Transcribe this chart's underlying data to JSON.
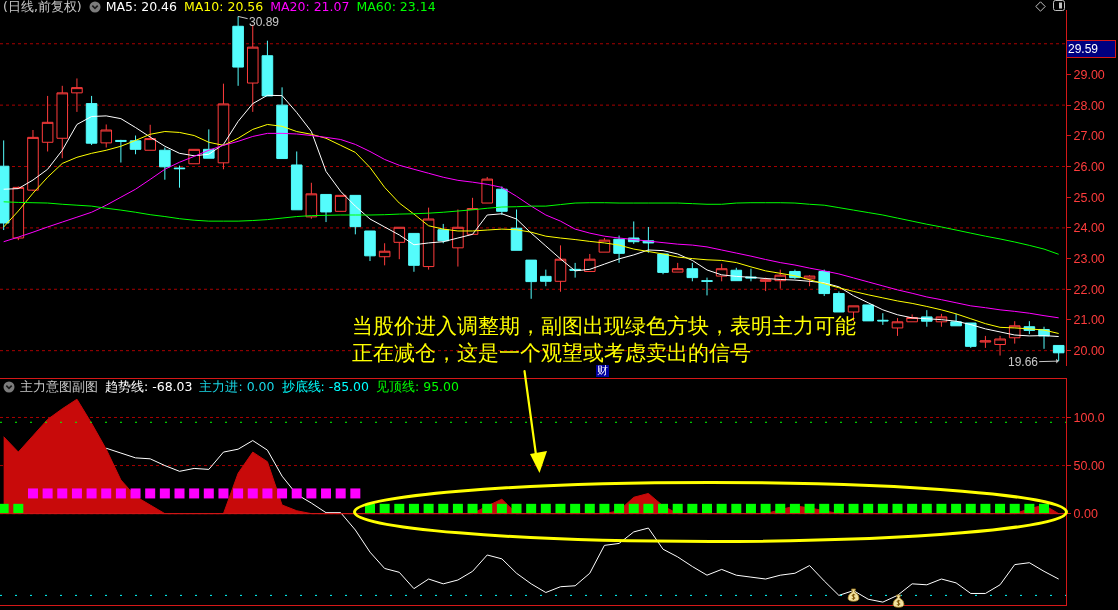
{
  "chart_data": [
    {
      "type": "candlestick",
      "title": "(日线,前复权)",
      "categories": [
        null,
        null,
        null,
        null,
        null,
        null,
        null,
        null,
        null,
        null,
        null,
        null,
        null,
        null,
        null,
        null,
        null,
        null,
        null,
        null,
        null,
        null,
        null,
        null,
        null,
        null,
        null,
        null,
        null,
        null,
        null,
        null,
        null,
        null,
        null,
        null,
        null,
        null,
        null,
        null,
        null,
        null,
        null,
        null,
        null,
        null,
        null,
        null,
        null,
        null,
        null,
        null,
        null,
        null,
        null,
        null,
        null,
        null,
        null,
        null,
        null,
        null,
        null,
        null,
        null,
        null,
        null,
        null,
        null,
        null,
        null,
        null,
        null
      ],
      "ohlc": [
        [
          26.01,
          26.85,
          23.93,
          24.16
        ],
        [
          23.67,
          25.35,
          23.6,
          25.32
        ],
        [
          25.23,
          27.19,
          25.2,
          26.95
        ],
        [
          26.79,
          28.3,
          26.49,
          27.44
        ],
        [
          26.92,
          28.63,
          26.27,
          28.4
        ],
        [
          28.4,
          28.87,
          27.78,
          28.57
        ],
        [
          28.05,
          28.3,
          26.7,
          26.76
        ],
        [
          26.77,
          27.37,
          26.62,
          27.19
        ],
        [
          26.85,
          26.87,
          26.13,
          26.82
        ],
        [
          26.84,
          27.01,
          26.4,
          26.56
        ],
        [
          26.53,
          27.36,
          26.53,
          26.91
        ],
        [
          26.53,
          26.62,
          25.57,
          25.99
        ],
        [
          25.95,
          26.03,
          25.31,
          25.93
        ],
        [
          26.09,
          26.56,
          26.09,
          26.56
        ],
        [
          26.56,
          27.21,
          26.27,
          26.27
        ],
        [
          26.12,
          28.7,
          25.91,
          28.04
        ],
        [
          30.57,
          30.89,
          28.63,
          29.24
        ],
        [
          28.72,
          30.62,
          27.78,
          29.89
        ],
        [
          29.61,
          30.1,
          28.3,
          28.3
        ],
        [
          28.0,
          28.58,
          26.26,
          26.26
        ],
        [
          26.05,
          26.49,
          24.59,
          24.59
        ],
        [
          24.36,
          25.47,
          24.3,
          25.11
        ],
        [
          25.09,
          25.09,
          24.19,
          24.52
        ],
        [
          24.54,
          25.06,
          24.54,
          25.06
        ],
        [
          25.06,
          25.06,
          23.79,
          24.04
        ],
        [
          23.9,
          23.9,
          22.92,
          23.09
        ],
        [
          23.06,
          23.5,
          22.78,
          23.24
        ],
        [
          23.53,
          24.02,
          22.98,
          24.02
        ],
        [
          23.82,
          23.82,
          22.57,
          22.78
        ],
        [
          22.74,
          24.66,
          22.64,
          24.29
        ],
        [
          23.94,
          24.13,
          23.5,
          23.58
        ],
        [
          23.35,
          24.6,
          22.74,
          24.02
        ],
        [
          23.79,
          24.98,
          23.79,
          24.63
        ],
        [
          24.81,
          25.66,
          24.81,
          25.59
        ],
        [
          25.26,
          25.35,
          24.42,
          24.54
        ],
        [
          23.99,
          24.6,
          23.27,
          23.27
        ],
        [
          22.95,
          22.95,
          21.69,
          22.25
        ],
        [
          22.42,
          22.64,
          22.1,
          22.26
        ],
        [
          22.26,
          23.43,
          21.92,
          22.98
        ],
        [
          22.65,
          22.86,
          22.38,
          22.62
        ],
        [
          22.58,
          23.15,
          22.58,
          22.98
        ],
        [
          23.21,
          23.67,
          23.21,
          23.6
        ],
        [
          23.63,
          23.75,
          22.86,
          23.17
        ],
        [
          23.67,
          24.21,
          23.48,
          23.55
        ],
        [
          23.58,
          24.03,
          23.19,
          23.51
        ],
        [
          23.15,
          23.15,
          22.49,
          22.55
        ],
        [
          22.56,
          22.86,
          22.56,
          22.67
        ],
        [
          22.67,
          22.86,
          22.26,
          22.38
        ],
        [
          22.28,
          22.38,
          21.8,
          22.26
        ],
        [
          22.43,
          22.83,
          22.26,
          22.67
        ],
        [
          22.62,
          22.7,
          22.28,
          22.28
        ],
        [
          22.4,
          22.67,
          22.26,
          22.37
        ],
        [
          22.26,
          22.38,
          21.94,
          22.31
        ],
        [
          22.28,
          22.64,
          22.02,
          22.46
        ],
        [
          22.58,
          22.64,
          22.34,
          22.38
        ],
        [
          22.34,
          22.46,
          22.1,
          22.43
        ],
        [
          22.58,
          22.64,
          21.78,
          21.86
        ],
        [
          21.86,
          21.93,
          21.26,
          21.26
        ],
        [
          21.26,
          21.46,
          20.96,
          21.46
        ],
        [
          21.49,
          21.49,
          20.97,
          20.97
        ],
        [
          20.99,
          21.22,
          20.84,
          20.97
        ],
        [
          20.74,
          21.06,
          20.48,
          20.94
        ],
        [
          20.94,
          21.18,
          20.94,
          21.08
        ],
        [
          21.1,
          21.32,
          20.78,
          20.96
        ],
        [
          20.94,
          21.2,
          20.78,
          21.1
        ],
        [
          20.94,
          21.2,
          20.81,
          20.81
        ],
        [
          20.9,
          20.9,
          20.09,
          20.14
        ],
        [
          20.28,
          20.48,
          20.09,
          20.32
        ],
        [
          20.2,
          20.48,
          19.84,
          20.38
        ],
        [
          20.42,
          20.96,
          20.23,
          20.81
        ],
        [
          20.78,
          20.96,
          20.54,
          20.66
        ],
        [
          20.69,
          20.78,
          20.06,
          20.48
        ],
        [
          20.17,
          20.17,
          19.66,
          19.93
        ]
      ],
      "colors": [
        "#54fcfc",
        "#ff3c3c",
        "#ff3c3c",
        "#ff3c3c",
        "#ff3c3c",
        "#ff3c3c",
        "#54fcfc",
        "#ff3c3c",
        "#54fcfc",
        "#54fcfc",
        "#ff3c3c",
        "#54fcfc",
        "#54fcfc",
        "#ff3c3c",
        "#54fcfc",
        "#ff3c3c",
        "#54fcfc",
        "#ff3c3c",
        "#54fcfc",
        "#54fcfc",
        "#54fcfc",
        "#ff3c3c",
        "#54fcfc",
        "#ff3c3c",
        "#54fcfc",
        "#54fcfc",
        "#ff3c3c",
        "#ff3c3c",
        "#54fcfc",
        "#ff3c3c",
        "#54fcfc",
        "#ff3c3c",
        "#ff3c3c",
        "#ff3c3c",
        "#54fcfc",
        "#54fcfc",
        "#54fcfc",
        "#54fcfc",
        "#ff3c3c",
        "#54fcfc",
        "#ff3c3c",
        "#ff3c3c",
        "#54fcfc",
        "#54fcfc",
        "#54fcfc",
        "#54fcfc",
        "#ff3c3c",
        "#54fcfc",
        "#54fcfc",
        "#ff3c3c",
        "#54fcfc",
        "#54fcfc",
        "#ff3c3c",
        "#ff3c3c",
        "#54fcfc",
        "#ff3c3c",
        "#54fcfc",
        "#54fcfc",
        "#ff3c3c",
        "#54fcfc",
        "#54fcfc",
        "#ff3c3c",
        "#ff3c3c",
        "#54fcfc",
        "#ff3c3c",
        "#54fcfc",
        "#54fcfc",
        "#ff3c3c",
        "#ff3c3c",
        "#ff3c3c",
        "#54fcfc",
        "#54fcfc",
        "#54fcfc"
      ],
      "series": [
        {
          "type": "line",
          "name": "MA5: 20.46",
          "color": "#ffffff",
          "values": [
            25.26,
            25.28,
            25.56,
            25.91,
            26.53,
            27.37,
            27.63,
            27.65,
            27.56,
            27.27,
            26.96,
            26.66,
            26.43,
            26.35,
            26.4,
            26.72,
            27.47,
            28.05,
            28.32,
            28.31,
            27.76,
            27.14,
            25.84,
            25.19,
            24.71,
            24.29,
            24.03,
            23.77,
            23.45,
            23.51,
            23.55,
            23.67,
            23.79,
            24.42,
            24.46,
            24.29,
            23.83,
            23.41,
            22.99,
            22.6,
            22.65,
            22.82,
            22.99,
            23.12,
            23.28,
            23.26,
            23.15,
            22.94,
            22.63,
            22.47,
            22.42,
            22.39,
            22.35,
            22.32,
            22.3,
            22.26,
            22.21,
            22.08,
            21.79,
            21.56,
            21.33,
            21.17,
            21.07,
            21.04,
            21.01,
            20.96,
            20.85,
            20.71,
            20.61,
            20.51,
            20.48,
            20.49,
            20.46
          ]
        },
        {
          "type": "line",
          "name": "MA10: 20.56",
          "color": "#ffff00",
          "values": [
            24.03,
            24.55,
            25.13,
            25.65,
            26.1,
            26.3,
            26.43,
            26.53,
            26.66,
            26.85,
            27.05,
            27.14,
            27.11,
            27.01,
            26.79,
            26.69,
            26.92,
            27.21,
            27.37,
            27.31,
            27.14,
            27.05,
            26.92,
            26.69,
            26.46,
            25.97,
            25.32,
            24.81,
            24.45,
            24.07,
            23.96,
            23.9,
            23.9,
            23.93,
            23.96,
            23.94,
            23.86,
            23.73,
            23.67,
            23.62,
            23.56,
            23.51,
            23.44,
            23.31,
            23.23,
            23.15,
            23.05,
            23.0,
            22.96,
            22.94,
            22.87,
            22.73,
            22.6,
            22.52,
            22.44,
            22.31,
            22.18,
            22.05,
            21.93,
            21.82,
            21.72,
            21.62,
            21.54,
            21.44,
            21.33,
            21.2,
            21.04,
            20.88,
            20.76,
            20.74,
            20.71,
            20.67,
            20.56
          ]
        },
        {
          "type": "line",
          "name": "MA20: 21.07",
          "color": "#ff00ff",
          "values": [
            23.55,
            23.7,
            23.86,
            24.03,
            24.19,
            24.35,
            24.51,
            24.74,
            25.0,
            25.26,
            25.58,
            25.91,
            26.14,
            26.33,
            26.53,
            26.69,
            26.82,
            26.98,
            27.08,
            27.08,
            27.06,
            27.01,
            26.95,
            26.88,
            26.72,
            26.49,
            26.23,
            26.04,
            25.91,
            25.78,
            25.65,
            25.55,
            25.49,
            25.42,
            25.32,
            25.03,
            24.71,
            24.42,
            24.22,
            23.96,
            23.83,
            23.73,
            23.67,
            23.62,
            23.57,
            23.52,
            23.47,
            23.44,
            23.38,
            23.28,
            23.18,
            23.08,
            22.97,
            22.87,
            22.79,
            22.69,
            22.6,
            22.5,
            22.37,
            22.24,
            22.11,
            21.98,
            21.87,
            21.75,
            21.66,
            21.56,
            21.46,
            21.4,
            21.33,
            21.28,
            21.22,
            21.14,
            21.07
          ]
        },
        {
          "type": "line",
          "name": "MA60: 23.14",
          "color": "#00ff00",
          "values": [
            24.85,
            24.83,
            24.82,
            24.81,
            24.77,
            24.74,
            24.71,
            24.64,
            24.58,
            24.51,
            24.43,
            24.37,
            24.3,
            24.25,
            24.22,
            24.22,
            24.22,
            24.24,
            24.27,
            24.32,
            24.37,
            24.4,
            24.41,
            24.42,
            24.42,
            24.42,
            24.43,
            24.45,
            24.46,
            24.48,
            24.51,
            24.55,
            24.59,
            24.64,
            24.68,
            24.69,
            24.71,
            24.71,
            24.76,
            24.81,
            24.82,
            24.82,
            24.81,
            24.81,
            24.81,
            24.81,
            24.81,
            24.79,
            24.77,
            24.77,
            24.81,
            24.82,
            24.82,
            24.82,
            24.81,
            24.77,
            24.74,
            24.66,
            24.58,
            24.5,
            24.42,
            24.32,
            24.22,
            24.12,
            24.03,
            23.93,
            23.83,
            23.73,
            23.64,
            23.54,
            23.43,
            23.31,
            23.14
          ]
        }
      ],
      "ylim": [
        19.5,
        31.1
      ],
      "yticks": [
        {
          "value": 20,
          "label": "20.00"
        },
        {
          "value": 21,
          "label": "21.00"
        },
        {
          "value": 22,
          "label": "22.00"
        },
        {
          "value": 23,
          "label": "23.00"
        },
        {
          "value": 24,
          "label": "24.00"
        },
        {
          "value": 25,
          "label": "25.00"
        },
        {
          "value": 26,
          "label": "26.00"
        },
        {
          "value": 27,
          "label": "27.00"
        },
        {
          "value": 28,
          "label": "28.00"
        },
        {
          "value": 29,
          "label": "29.00"
        },
        {
          "value": 30,
          "label": null
        }
      ],
      "grid": "y",
      "legend": "top left",
      "tick_labels": "y",
      "annotations": [
        "当股价进入调整期，副图出现绿色方块，表明主力可能正在减仓，这是一个观望或考虑卖出的信号",
        "财",
        "30.89",
        "19.66",
        "29.59"
      ]
    },
    {
      "type": "line",
      "title": "主力意图副图",
      "categories": [
        null,
        null,
        null,
        null,
        null,
        null,
        null,
        null,
        null,
        null,
        null,
        null,
        null,
        null,
        null,
        null,
        null,
        null,
        null,
        null,
        null,
        null,
        null,
        null,
        null,
        null,
        null,
        null,
        null,
        null,
        null,
        null,
        null,
        null,
        null,
        null,
        null,
        null,
        null,
        null,
        null,
        null,
        null,
        null,
        null,
        null,
        null,
        null,
        null,
        null,
        null,
        null,
        null,
        null,
        null,
        null,
        null,
        null,
        null,
        null,
        null,
        null,
        null,
        null,
        null,
        null,
        null,
        null,
        null,
        null,
        null,
        null,
        null
      ],
      "series": [
        {
          "type": "area",
          "color": "#c80a0a",
          "values": [
            80,
            64,
            81,
            98,
            109,
            119,
            94,
            67,
            35,
            18,
            9,
            0,
            0,
            0,
            0,
            0,
            42,
            64,
            54,
            9,
            3,
            0,
            0,
            0,
            0,
            0,
            0,
            0,
            0,
            0,
            0,
            0,
            0,
            8,
            15,
            0,
            0,
            0,
            0,
            0,
            0,
            0,
            3,
            17,
            21,
            8,
            0,
            0,
            0,
            0,
            0,
            0,
            0,
            4,
            8,
            6,
            3,
            0,
            0,
            0,
            0,
            0,
            0,
            0,
            0,
            0,
            0,
            0,
            0,
            0,
            5,
            9,
            0
          ]
        },
        {
          "type": "line",
          "name": "趋势线: -68.03",
          "color": "#ffffff",
          "values": [
            null,
            null,
            null,
            null,
            null,
            null,
            null,
            68,
            63,
            58,
            57,
            50,
            44,
            47,
            46,
            64,
            67,
            76,
            66,
            39,
            20,
            11,
            1,
            1,
            -17,
            -40,
            -57,
            -61,
            -78,
            -68,
            -73,
            -69,
            -60,
            -43,
            -47,
            -62,
            -73,
            -82,
            -76,
            -75,
            -62,
            -33,
            -31,
            -19,
            -15,
            -37,
            -45,
            -55,
            -64,
            -58,
            -64,
            -66,
            -68,
            -64,
            -62,
            -54,
            -70,
            -85,
            -80,
            -89,
            -92,
            -85,
            -73,
            -74,
            -68,
            -72,
            -83,
            -83,
            -74,
            -53,
            -51,
            -60,
            -68.03
          ]
        },
        {
          "type": "scatter",
          "marker": "square",
          "color": "#ff00ff",
          "values": [
            null,
            null,
            21,
            21,
            21,
            21,
            21,
            21,
            21,
            21,
            21,
            21,
            21,
            21,
            21,
            21,
            21,
            21,
            21,
            21,
            21,
            21,
            21,
            21,
            21,
            null,
            null,
            null,
            null,
            null,
            null,
            null,
            null,
            null,
            null,
            null,
            null,
            null,
            null,
            null,
            null,
            null,
            null,
            null,
            null,
            null,
            null,
            null,
            null,
            null,
            null,
            null,
            null,
            null,
            null,
            null,
            null,
            null,
            null,
            null,
            null,
            null,
            null,
            null,
            null,
            null,
            null,
            null,
            null,
            null,
            null,
            null,
            null
          ]
        },
        {
          "type": "scatter",
          "marker": "square",
          "color": "#00ff00",
          "values": [
            5,
            5,
            null,
            null,
            null,
            null,
            null,
            null,
            null,
            null,
            null,
            null,
            null,
            null,
            null,
            null,
            null,
            null,
            null,
            null,
            null,
            null,
            null,
            null,
            null,
            5,
            5,
            5,
            5,
            5,
            5,
            5,
            5,
            5,
            5,
            5,
            5,
            5,
            5,
            5,
            5,
            5,
            5,
            5,
            5,
            5,
            5,
            5,
            5,
            5,
            5,
            5,
            5,
            5,
            5,
            5,
            5,
            5,
            5,
            5,
            5,
            5,
            5,
            5,
            5,
            5,
            5,
            5,
            5,
            5,
            5,
            5,
            null
          ]
        }
      ],
      "ylim": [
        -95,
        140
      ],
      "yticks": [
        {
          "value": 0,
          "label": "0.00"
        },
        {
          "value": 50,
          "label": "50.00"
        },
        {
          "value": 100,
          "label": "100.0"
        }
      ],
      "grid": "y",
      "legend": "top left",
      "tick_labels": "y",
      "ref_lines": [
        {
          "axis": "y",
          "value": 0,
          "color": "#d41818",
          "line_style": "solid"
        },
        {
          "axis": "y",
          "value": -85,
          "label": "抄底线: -85.00",
          "color": "#00ffff",
          "line_style": "dotted"
        },
        {
          "axis": "y",
          "value": 95,
          "label": "见顶线: 95.00",
          "color": "#00ff00",
          "line_style": "dotted"
        }
      ],
      "annotations": [
        "主力进: 0.00"
      ]
    }
  ]
}
